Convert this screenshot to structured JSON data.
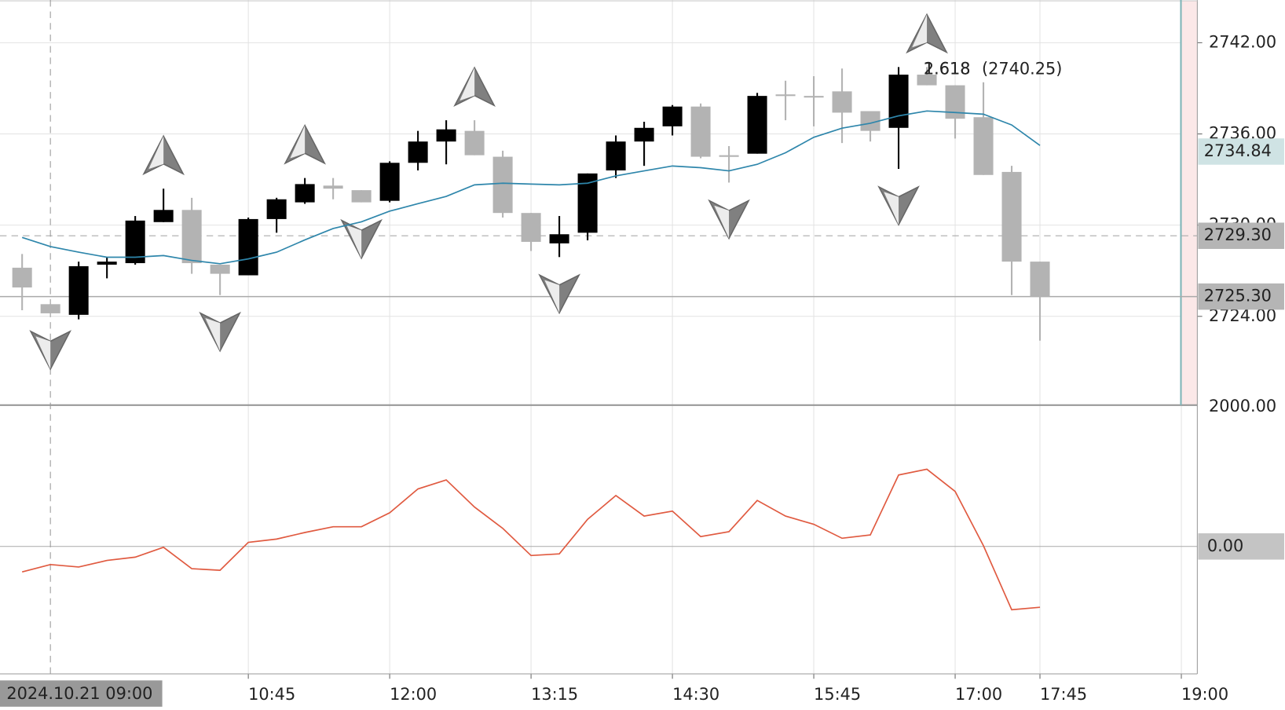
{
  "chart_data": [
    {
      "type": "candlestick",
      "x": [
        "08:45",
        "09:00",
        "09:15",
        "09:30",
        "09:45",
        "10:00",
        "10:15",
        "10:30",
        "10:45",
        "11:00",
        "11:15",
        "11:30",
        "11:45",
        "12:00",
        "12:15",
        "12:30",
        "12:45",
        "13:00",
        "13:15",
        "13:30",
        "13:45",
        "14:00",
        "14:15",
        "14:30",
        "14:45",
        "15:00",
        "15:15",
        "15:30",
        "15:45",
        "16:00",
        "16:15",
        "16:30",
        "16:45",
        "17:00",
        "17:15",
        "17:30",
        "17:45"
      ],
      "open": [
        2727.2,
        2724.8,
        2724.1,
        2727.4,
        2727.5,
        2730.2,
        2731.0,
        2727.4,
        2726.7,
        2730.4,
        2731.5,
        2732.6,
        2732.3,
        2731.6,
        2734.1,
        2735.5,
        2736.2,
        2734.5,
        2730.8,
        2728.8,
        2729.5,
        2733.6,
        2735.5,
        2736.5,
        2737.8,
        2734.6,
        2734.7,
        2738.6,
        2738.5,
        2738.8,
        2737.5,
        2736.4,
        2739.9,
        2739.2,
        2737.1,
        2733.5,
        2727.6
      ],
      "high": [
        2728.1,
        2724.8,
        2727.6,
        2727.9,
        2730.6,
        2732.4,
        2731.8,
        2727.4,
        2730.5,
        2731.8,
        2733.1,
        2733.1,
        2732.3,
        2734.2,
        2736.2,
        2736.9,
        2736.9,
        2734.9,
        2730.8,
        2730.6,
        2733.4,
        2735.9,
        2736.8,
        2737.9,
        2738.0,
        2735.2,
        2738.7,
        2739.5,
        2739.8,
        2740.3,
        2737.5,
        2740.4,
        2740.4,
        2739.2,
        2739.4,
        2733.9,
        2727.6
      ],
      "low": [
        2724.4,
        2724.2,
        2723.8,
        2726.5,
        2727.4,
        2730.2,
        2726.8,
        2725.4,
        2726.7,
        2729.5,
        2731.4,
        2731.7,
        2731.5,
        2731.5,
        2733.6,
        2734.0,
        2734.6,
        2730.5,
        2728.3,
        2727.9,
        2729.0,
        2733.1,
        2733.9,
        2735.9,
        2734.4,
        2732.8,
        2734.7,
        2736.9,
        2736.5,
        2735.4,
        2735.5,
        2733.7,
        2739.2,
        2735.7,
        2733.3,
        2725.4,
        2722.4
      ],
      "close": [
        2725.9,
        2724.2,
        2727.3,
        2727.6,
        2730.3,
        2731.0,
        2727.5,
        2726.8,
        2730.4,
        2731.7,
        2732.7,
        2732.4,
        2731.5,
        2734.1,
        2735.5,
        2736.3,
        2734.6,
        2730.8,
        2728.9,
        2729.4,
        2733.4,
        2735.5,
        2736.4,
        2737.8,
        2734.5,
        2734.6,
        2738.5,
        2738.5,
        2738.5,
        2737.4,
        2736.2,
        2739.9,
        2739.2,
        2737.0,
        2733.3,
        2727.6,
        2725.3
      ],
      "up_color": "#000000",
      "down_color": "#b3b3b3",
      "ma": {
        "color": "#2e86ab",
        "values": [
          2729.19,
          2728.59,
          2728.22,
          2727.89,
          2727.89,
          2728.0,
          2727.68,
          2727.46,
          2727.78,
          2728.22,
          2729.03,
          2729.78,
          2730.22,
          2730.92,
          2731.41,
          2731.89,
          2732.65,
          2732.76,
          2732.7,
          2732.65,
          2732.76,
          2733.24,
          2733.57,
          2733.89,
          2733.78,
          2733.57,
          2734.0,
          2734.76,
          2735.78,
          2736.38,
          2736.7,
          2737.19,
          2737.51,
          2737.41,
          2737.3,
          2736.59,
          2735.24
        ]
      },
      "buy_signals": [
        "10:00",
        "11:15",
        "12:45",
        "16:45"
      ],
      "sell_signals": [
        "09:00",
        "10:30",
        "11:45",
        "13:30",
        "15:00",
        "16:30"
      ],
      "ylim": [
        2718.16,
        2744.81
      ],
      "yticks": [
        {
          "value": 2724,
          "label": "2724.00"
        },
        {
          "value": 2730,
          "label": "2730.00"
        },
        {
          "value": 2736,
          "label": "2736.00"
        },
        {
          "value": 2742,
          "label": "2742.00"
        }
      ],
      "xticks": [
        "10:45",
        "12:00",
        "13:15",
        "14:30",
        "15:45",
        "17:00",
        "17:45",
        "19:00"
      ],
      "grid": true,
      "separator_label": "2000.00",
      "price_tags": [
        {
          "value": 2734.84,
          "label": "2734.84",
          "bg": "#cfe3e4",
          "fg": "#222222"
        },
        {
          "value": 2729.3,
          "label": "2729.30",
          "bg": "#b5b5b5",
          "fg": "#ffffff"
        },
        {
          "value": 2725.3,
          "label": "2725.30",
          "bg": "#b5b5b5",
          "fg": "#ffffff"
        }
      ],
      "crosshair": {
        "label": "2024.10.21 09:00",
        "price": {
          "value": 2729.3,
          "label": "2729.30"
        }
      },
      "fib_ratios": [
        {
          "text": "2.618",
          "color": "#c030c0"
        },
        {
          "text": "1.618",
          "color": "#e0a030"
        }
      ],
      "fib_level": {
        "value": 2740.25,
        "label": "(2740.25)",
        "color": "#c030c0"
      }
    },
    {
      "type": "line",
      "values": [
        -3.1,
        -2.2,
        -2.5,
        -1.7,
        -1.3,
        -0.1,
        -2.7,
        -2.9,
        0.5,
        0.9,
        1.7,
        2.4,
        2.4,
        4.1,
        7.0,
        8.1,
        4.8,
        2.2,
        -1.1,
        -0.9,
        3.3,
        6.2,
        3.7,
        4.3,
        1.2,
        1.8,
        5.6,
        3.7,
        2.7,
        1.0,
        1.4,
        8.7,
        9.4,
        6.7,
        0.1,
        -7.7,
        -7.4
      ],
      "color": "#e05a40",
      "ylim": [
        -15.5,
        17
      ],
      "yticks": [
        {
          "value": 0,
          "label": "0.00"
        }
      ]
    }
  ]
}
